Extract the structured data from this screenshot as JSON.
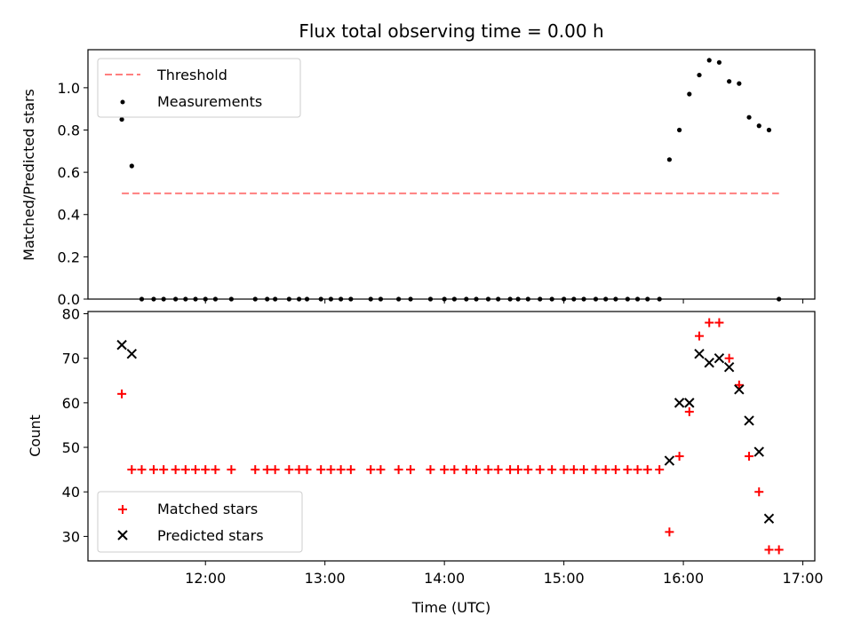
{
  "title": "Flux total observing time = 0.00 h",
  "chart_data": [
    {
      "type": "scatter",
      "ylabel": "Matched/Predicted stars",
      "xlabel": "",
      "xlim": [
        "11:01",
        "17:06"
      ],
      "ylim": [
        0,
        1.18
      ],
      "yticks": [
        "0.0",
        "0.2",
        "0.4",
        "0.6",
        "0.8",
        "1.0"
      ],
      "legend_position": "top-left",
      "threshold": {
        "name": "Threshold",
        "value": 0.5,
        "x_range": [
          "11:18",
          "16:48"
        ],
        "color": "#ff7f7f"
      },
      "series": [
        {
          "name": "Measurements",
          "color": "#000000",
          "points": [
            [
              "11:18",
              0.85
            ],
            [
              "11:23",
              0.63
            ],
            [
              "11:28",
              0.0
            ],
            [
              "11:34",
              0.0
            ],
            [
              "11:39",
              0.0
            ],
            [
              "11:45",
              0.0
            ],
            [
              "11:50",
              0.0
            ],
            [
              "11:55",
              0.0
            ],
            [
              "12:00",
              0.0
            ],
            [
              "12:05",
              0.0
            ],
            [
              "12:13",
              0.0
            ],
            [
              "12:25",
              0.0
            ],
            [
              "12:31",
              0.0
            ],
            [
              "12:35",
              0.0
            ],
            [
              "12:42",
              0.0
            ],
            [
              "12:47",
              0.0
            ],
            [
              "12:51",
              0.0
            ],
            [
              "12:58",
              0.0
            ],
            [
              "13:03",
              0.0
            ],
            [
              "13:08",
              0.0
            ],
            [
              "13:13",
              0.0
            ],
            [
              "13:23",
              0.0
            ],
            [
              "13:28",
              0.0
            ],
            [
              "13:37",
              0.0
            ],
            [
              "13:43",
              0.0
            ],
            [
              "13:53",
              0.0
            ],
            [
              "14:00",
              0.0
            ],
            [
              "14:05",
              0.0
            ],
            [
              "14:11",
              0.0
            ],
            [
              "14:16",
              0.0
            ],
            [
              "14:22",
              0.0
            ],
            [
              "14:27",
              0.0
            ],
            [
              "14:33",
              0.0
            ],
            [
              "14:37",
              0.0
            ],
            [
              "14:42",
              0.0
            ],
            [
              "14:48",
              0.0
            ],
            [
              "14:54",
              0.0
            ],
            [
              "15:00",
              0.0
            ],
            [
              "15:05",
              0.0
            ],
            [
              "15:10",
              0.0
            ],
            [
              "15:16",
              0.0
            ],
            [
              "15:21",
              0.0
            ],
            [
              "15:26",
              0.0
            ],
            [
              "15:32",
              0.0
            ],
            [
              "15:37",
              0.0
            ],
            [
              "15:42",
              0.0
            ],
            [
              "15:48",
              0.0
            ],
            [
              "15:53",
              0.66
            ],
            [
              "15:58",
              0.8
            ],
            [
              "16:03",
              0.97
            ],
            [
              "16:08",
              1.06
            ],
            [
              "16:13",
              1.13
            ],
            [
              "16:18",
              1.12
            ],
            [
              "16:23",
              1.03
            ],
            [
              "16:28",
              1.02
            ],
            [
              "16:33",
              0.86
            ],
            [
              "16:38",
              0.82
            ],
            [
              "16:43",
              0.8
            ],
            [
              "16:48",
              0.0
            ]
          ]
        }
      ]
    },
    {
      "type": "scatter",
      "ylabel": "Count",
      "xlabel": "Time (UTC)",
      "xlim": [
        "11:01",
        "17:06"
      ],
      "ylim": [
        24.5,
        80.5
      ],
      "yticks": [
        "30",
        "40",
        "50",
        "60",
        "70",
        "80"
      ],
      "xticks": [
        "12:00",
        "13:00",
        "14:00",
        "15:00",
        "16:00",
        "17:00"
      ],
      "legend_position": "bottom-left",
      "series": [
        {
          "name": "Matched stars",
          "marker": "plus",
          "color": "#ff0000",
          "points": [
            [
              "11:18",
              62
            ],
            [
              "11:23",
              45
            ],
            [
              "11:28",
              45
            ],
            [
              "11:34",
              45
            ],
            [
              "11:39",
              45
            ],
            [
              "11:45",
              45
            ],
            [
              "11:50",
              45
            ],
            [
              "11:55",
              45
            ],
            [
              "12:00",
              45
            ],
            [
              "12:05",
              45
            ],
            [
              "12:13",
              45
            ],
            [
              "12:25",
              45
            ],
            [
              "12:31",
              45
            ],
            [
              "12:35",
              45
            ],
            [
              "12:42",
              45
            ],
            [
              "12:47",
              45
            ],
            [
              "12:51",
              45
            ],
            [
              "12:58",
              45
            ],
            [
              "13:03",
              45
            ],
            [
              "13:08",
              45
            ],
            [
              "13:13",
              45
            ],
            [
              "13:23",
              45
            ],
            [
              "13:28",
              45
            ],
            [
              "13:37",
              45
            ],
            [
              "13:43",
              45
            ],
            [
              "13:53",
              45
            ],
            [
              "14:00",
              45
            ],
            [
              "14:05",
              45
            ],
            [
              "14:11",
              45
            ],
            [
              "14:16",
              45
            ],
            [
              "14:22",
              45
            ],
            [
              "14:27",
              45
            ],
            [
              "14:33",
              45
            ],
            [
              "14:37",
              45
            ],
            [
              "14:42",
              45
            ],
            [
              "14:48",
              45
            ],
            [
              "14:54",
              45
            ],
            [
              "15:00",
              45
            ],
            [
              "15:05",
              45
            ],
            [
              "15:10",
              45
            ],
            [
              "15:16",
              45
            ],
            [
              "15:21",
              45
            ],
            [
              "15:26",
              45
            ],
            [
              "15:32",
              45
            ],
            [
              "15:37",
              45
            ],
            [
              "15:42",
              45
            ],
            [
              "15:48",
              45
            ],
            [
              "15:53",
              31
            ],
            [
              "15:58",
              48
            ],
            [
              "16:03",
              58
            ],
            [
              "16:08",
              75
            ],
            [
              "16:13",
              78
            ],
            [
              "16:18",
              78
            ],
            [
              "16:23",
              70
            ],
            [
              "16:28",
              64
            ],
            [
              "16:33",
              48
            ],
            [
              "16:38",
              40
            ],
            [
              "16:43",
              27
            ],
            [
              "16:48",
              27
            ]
          ]
        },
        {
          "name": "Predicted stars",
          "marker": "x",
          "color": "#000000",
          "points": [
            [
              "11:18",
              73
            ],
            [
              "11:23",
              71
            ],
            [
              "15:53",
              47
            ],
            [
              "15:58",
              60
            ],
            [
              "16:03",
              60
            ],
            [
              "16:08",
              71
            ],
            [
              "16:13",
              69
            ],
            [
              "16:18",
              70
            ],
            [
              "16:23",
              68
            ],
            [
              "16:28",
              63
            ],
            [
              "16:33",
              56
            ],
            [
              "16:38",
              49
            ],
            [
              "16:43",
              34
            ]
          ]
        }
      ]
    }
  ]
}
